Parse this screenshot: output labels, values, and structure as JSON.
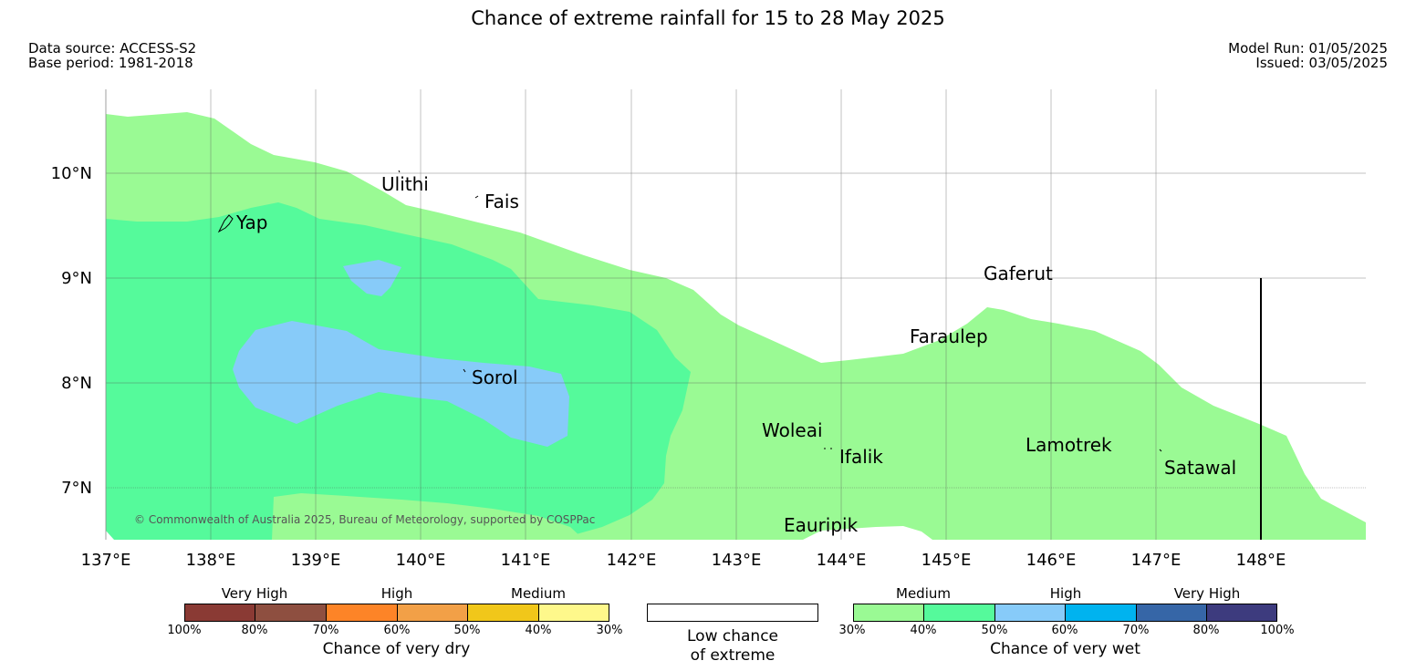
{
  "header": {
    "title": "Chance of extreme rainfall for 15 to 28 May 2025",
    "data_source": "Data source: ACCESS-S2",
    "base_period": "Base period: 1981-2018",
    "model_run": "Model Run: 01/05/2025",
    "issued": "Issued: 03/05/2025"
  },
  "map": {
    "copyright": "© Commonwealth of Australia 2025, Bureau of Meteorology, supported by COSPPac",
    "lon_labels": [
      "137°E",
      "138°E",
      "139°E",
      "140°E",
      "141°E",
      "142°E",
      "143°E",
      "144°E",
      "145°E",
      "146°E",
      "147°E",
      "148°E"
    ],
    "lat_labels": [
      "10°N",
      "9°N",
      "8°N",
      "7°N"
    ],
    "places": [
      "Ulithi",
      "Fais",
      "Yap",
      "Gaferut",
      "Faraulep",
      "Sorol",
      "Woleai",
      "Ifalik",
      "Lamotrek",
      "Satawal",
      "Eauripik"
    ],
    "colors": {
      "medium_wet": "#9afa94",
      "high_wet_40": "#55fa9b",
      "high_wet_50": "#87cbf9"
    }
  },
  "legend": {
    "dry": {
      "categories": [
        "Very High",
        "High",
        "Medium"
      ],
      "ticks": [
        "100%",
        "80%",
        "70%",
        "60%",
        "50%",
        "40%",
        "30%"
      ],
      "colors": [
        "#8a3a34",
        "#8e4f40",
        "#fd8427",
        "#f2a047",
        "#f1c71a",
        "#fef88b"
      ],
      "label": "Chance of very dry"
    },
    "neutral": {
      "label_line1": "Low chance",
      "label_line2": "of extreme"
    },
    "wet": {
      "categories": [
        "Medium",
        "High",
        "Very High"
      ],
      "ticks": [
        "30%",
        "40%",
        "50%",
        "60%",
        "70%",
        "80%",
        "100%"
      ],
      "colors": [
        "#9afa94",
        "#55fa9b",
        "#87cbf9",
        "#00b3ef",
        "#3666a7",
        "#3d3b7e"
      ],
      "label": "Chance of very wet"
    }
  }
}
